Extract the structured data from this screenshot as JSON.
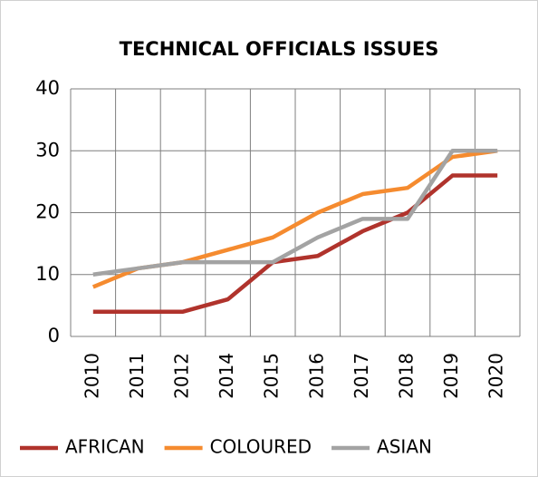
{
  "chart_data": {
    "type": "line",
    "title": "TECHNICAL OFFICIALS ISSUES",
    "categories": [
      "2010",
      "2011",
      "2012",
      "2014",
      "2015",
      "2016",
      "2017",
      "2018",
      "2019",
      "2020"
    ],
    "series": [
      {
        "name": "AFRICAN",
        "color": "#b0332c",
        "values": [
          4,
          4,
          4,
          6,
          12,
          13,
          17,
          20,
          26,
          26
        ]
      },
      {
        "name": "COLOURED",
        "color": "#f58b2f",
        "values": [
          8,
          11,
          12,
          14,
          16,
          20,
          23,
          24,
          29,
          30
        ]
      },
      {
        "name": "ASIAN",
        "color": "#a3a3a3",
        "values": [
          10,
          11,
          12,
          12,
          12,
          16,
          19,
          19,
          30,
          30
        ]
      }
    ],
    "ylim": [
      0,
      40
    ],
    "yticks": [
      0,
      10,
      20,
      30,
      40
    ],
    "grid": true,
    "legend": "bottom"
  }
}
